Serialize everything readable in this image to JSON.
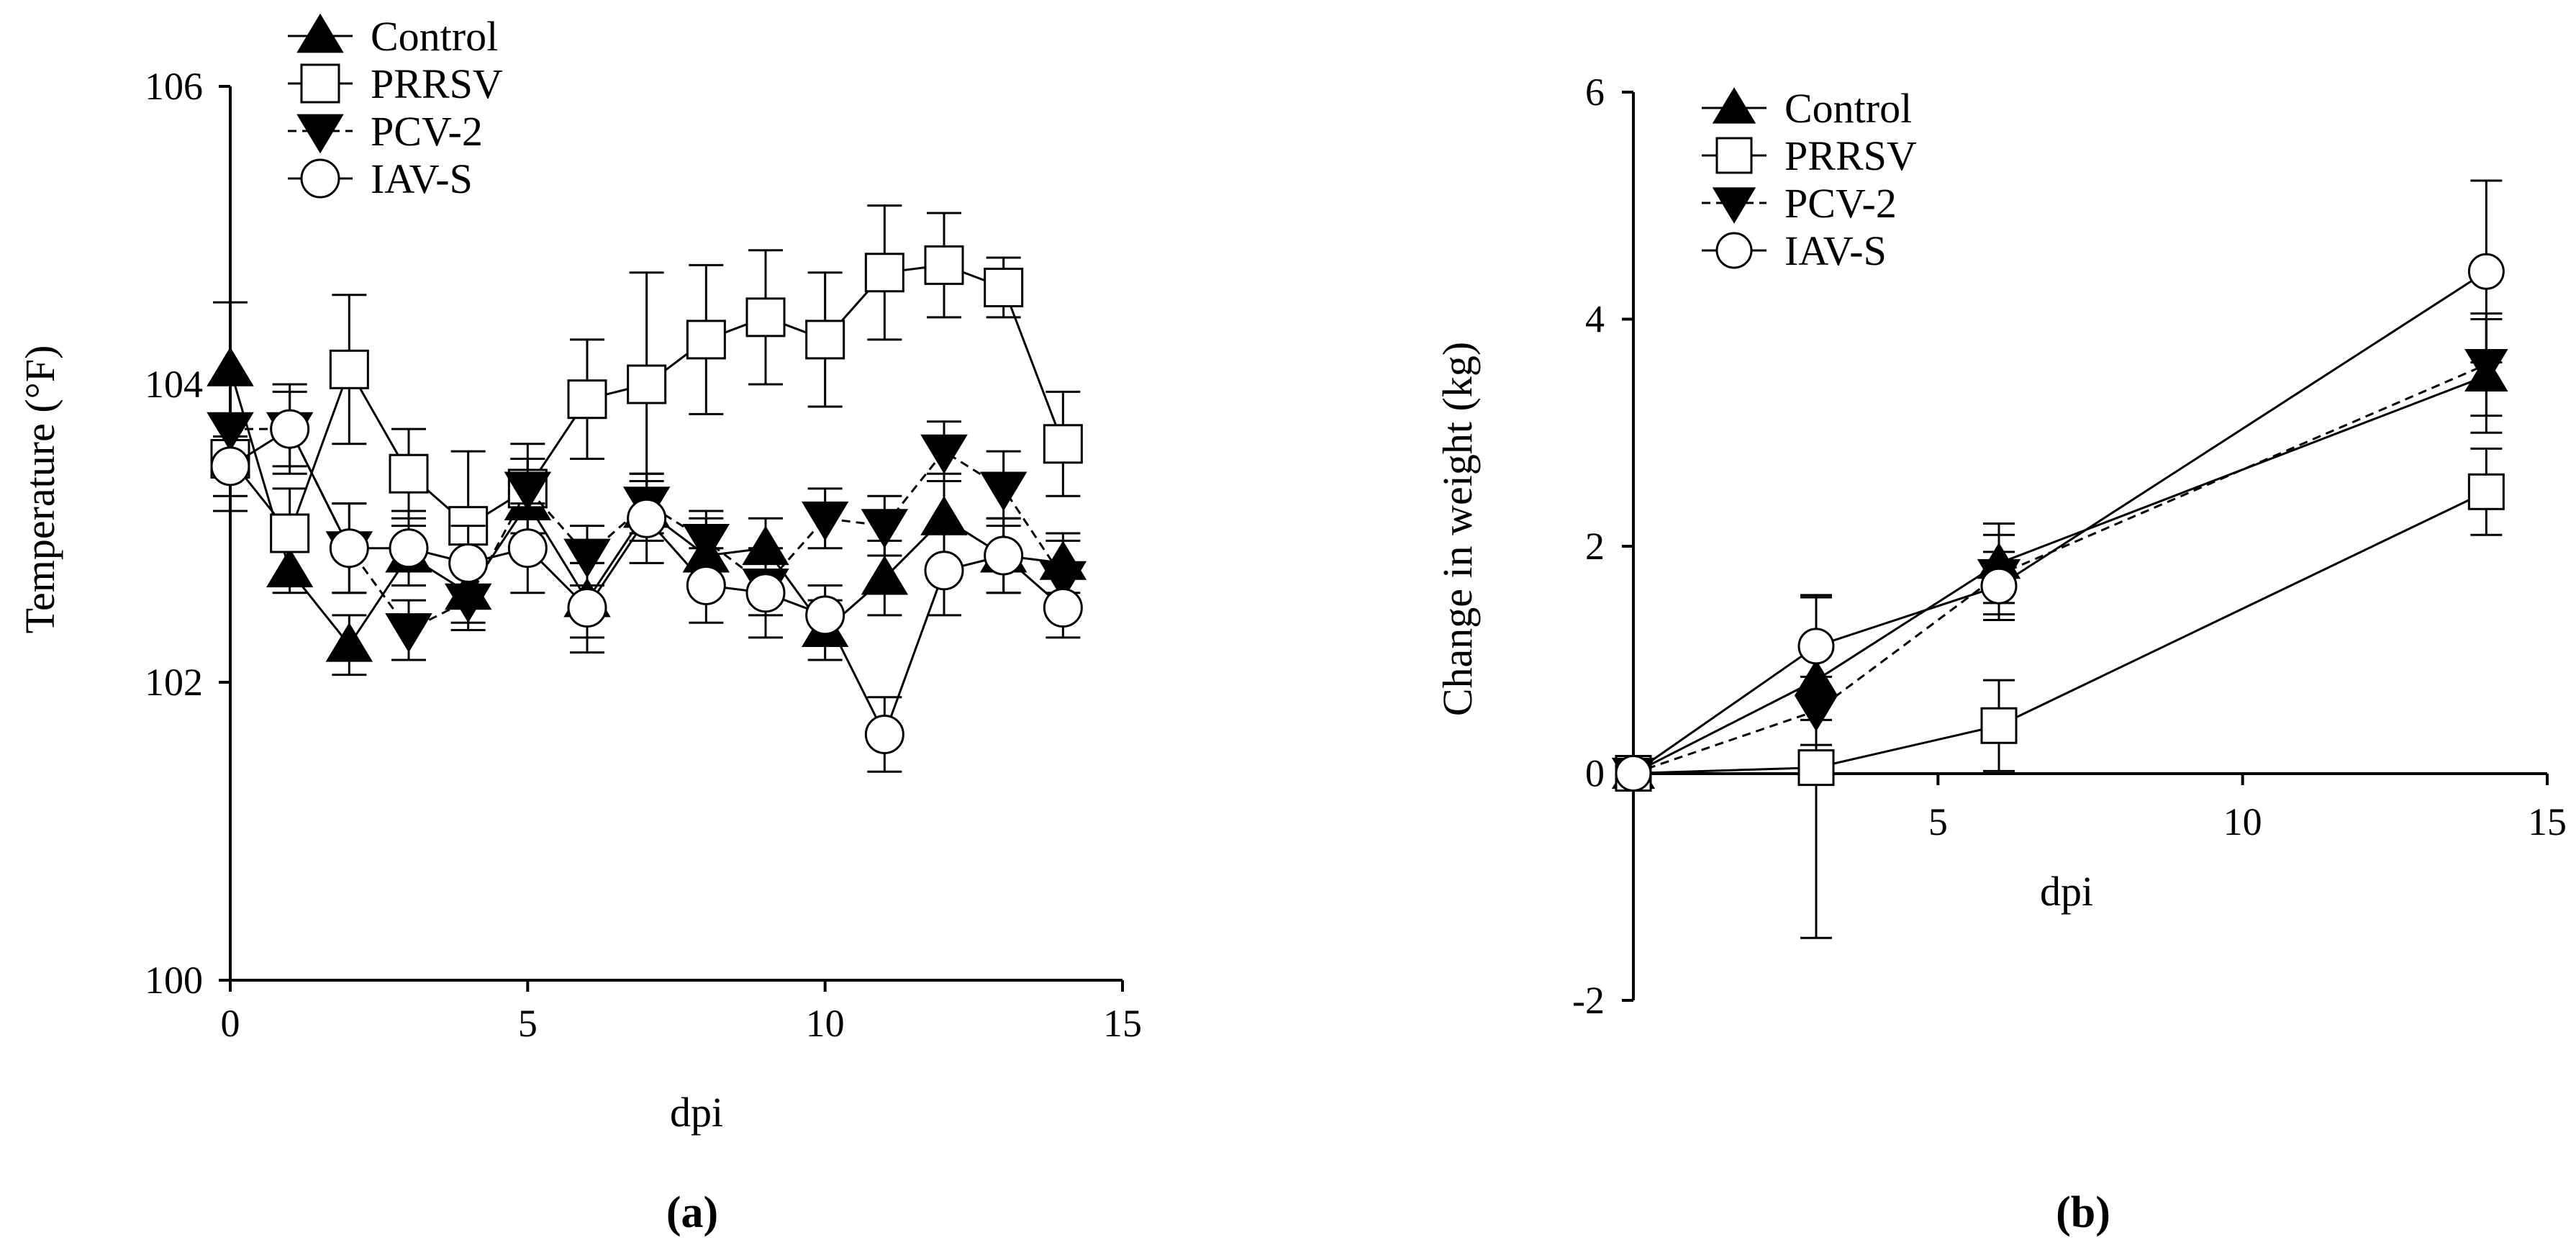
{
  "chart_data": [
    {
      "panel_label": "(a)",
      "type": "line",
      "xlabel": "dpi",
      "ylabel": "Temperature (°F)",
      "xlim": [
        0,
        15
      ],
      "ylim": [
        100,
        106
      ],
      "xticks": [
        0,
        5,
        10,
        15
      ],
      "yticks": [
        100,
        102,
        104,
        106
      ],
      "x": [
        0,
        1,
        2,
        3,
        4,
        5,
        6,
        7,
        8,
        9,
        10,
        11,
        12,
        13,
        14
      ],
      "legend": "top-left",
      "series": [
        {
          "name": "Control",
          "marker": "triangle-up",
          "line": "solid",
          "values": [
            104.1,
            102.75,
            102.25,
            102.85,
            102.6,
            103.2,
            102.55,
            103.15,
            102.85,
            102.9,
            102.35,
            102.7,
            103.1,
            102.85,
            102.8
          ],
          "errors": [
            0.45,
            0.15,
            0.2,
            0.2,
            0.2,
            0.3,
            0.25,
            0.2,
            0.25,
            0.2,
            0.2,
            0.25,
            0.3,
            0.25,
            0.2
          ]
        },
        {
          "name": "PRRSV",
          "marker": "square-open",
          "line": "solid",
          "values": [
            103.5,
            103.0,
            104.1,
            103.4,
            103.05,
            103.3,
            103.9,
            104.0,
            104.3,
            104.45,
            104.3,
            104.75,
            104.8,
            104.65,
            103.6
          ],
          "errors": [
            0.25,
            0.3,
            0.5,
            0.3,
            0.5,
            0.3,
            0.4,
            0.75,
            0.5,
            0.45,
            0.45,
            0.45,
            0.35,
            0.2,
            0.35
          ]
        },
        {
          "name": "PCV-2",
          "marker": "triangle-down",
          "line": "dashed",
          "values": [
            103.7,
            103.7,
            102.9,
            102.35,
            102.55,
            103.3,
            102.85,
            103.2,
            102.95,
            102.65,
            103.1,
            103.05,
            103.55,
            103.3,
            102.7
          ],
          "errors": [
            0.3,
            0.3,
            0.3,
            0.2,
            0.2,
            0.2,
            0.2,
            0.2,
            0.2,
            0.2,
            0.2,
            0.2,
            0.2,
            0.25,
            0.25
          ]
        },
        {
          "name": "IAV-S",
          "marker": "circle-open",
          "line": "solid",
          "values": [
            103.45,
            103.7,
            102.9,
            102.9,
            102.8,
            102.9,
            102.5,
            103.1,
            102.65,
            102.6,
            102.45,
            101.65,
            102.75,
            102.85,
            102.5
          ],
          "errors": [
            0.3,
            0.25,
            0.3,
            0.25,
            0.25,
            0.3,
            0.3,
            0.3,
            0.25,
            0.3,
            0.2,
            0.25,
            0.3,
            0.25,
            0.2
          ]
        }
      ]
    },
    {
      "panel_label": "(b)",
      "type": "line",
      "xlabel": "dpi",
      "ylabel": "Change in weight (kg)",
      "xlim": [
        0,
        15
      ],
      "ylim": [
        -2,
        6
      ],
      "xticks": [
        5,
        10,
        15
      ],
      "yticks": [
        -2,
        0,
        2,
        4,
        6
      ],
      "x": [
        0,
        3,
        6,
        14
      ],
      "legend": "top-left",
      "series": [
        {
          "name": "Control",
          "marker": "triangle-up",
          "line": "solid",
          "values": [
            0,
            0.82,
            1.85,
            3.5
          ],
          "errors": [
            0,
            0.35,
            0.35,
            0.5
          ]
        },
        {
          "name": "PRRSV",
          "marker": "square-open",
          "line": "solid",
          "values": [
            0,
            0.05,
            0.42,
            2.48
          ],
          "errors": [
            0,
            1.5,
            0.4,
            0.38
          ]
        },
        {
          "name": "PCV-2",
          "marker": "triangle-down",
          "line": "dashed",
          "values": [
            0,
            0.55,
            1.75,
            3.6
          ],
          "errors": [
            0,
            0.3,
            0.35,
            0.45
          ]
        },
        {
          "name": "IAV-S",
          "marker": "circle-open",
          "line": "solid",
          "values": [
            0,
            1.12,
            1.65,
            4.42
          ],
          "errors": [
            0,
            0.45,
            0.3,
            0.8
          ]
        }
      ]
    }
  ]
}
